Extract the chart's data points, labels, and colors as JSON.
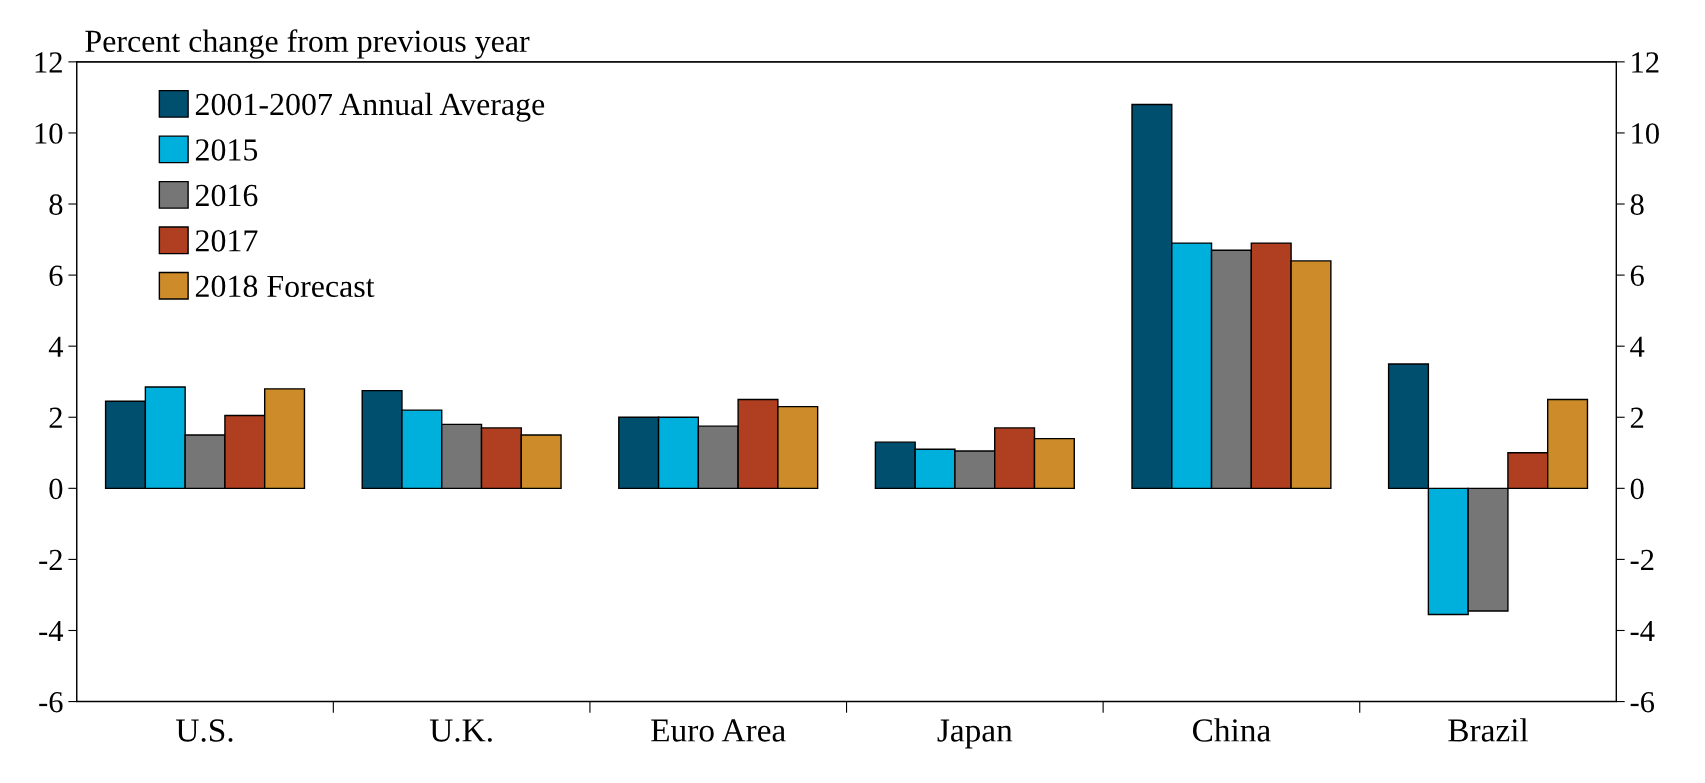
{
  "chart_data": {
    "type": "bar",
    "ylabel": "Percent change from previous year",
    "categories": [
      "U.S.",
      "U.K.",
      "Euro Area",
      "Japan",
      "China",
      "Brazil"
    ],
    "series": [
      {
        "name": "2001-2007 Annual Average",
        "color": "#004f6e",
        "values": [
          2.45,
          2.75,
          2.0,
          1.3,
          10.8,
          3.5
        ]
      },
      {
        "name": "2015",
        "color": "#00b0dc",
        "values": [
          2.85,
          2.2,
          2.0,
          1.1,
          6.9,
          -3.55
        ]
      },
      {
        "name": "2016",
        "color": "#767676",
        "values": [
          1.5,
          1.8,
          1.75,
          1.05,
          6.7,
          -3.45
        ]
      },
      {
        "name": "2017",
        "color": "#b03e20",
        "values": [
          2.05,
          1.7,
          2.5,
          1.7,
          6.9,
          1.0
        ]
      },
      {
        "name": "2018 Forecast",
        "color": "#cd8b2a",
        "values": [
          2.8,
          1.5,
          2.3,
          1.4,
          6.4,
          2.5
        ]
      }
    ],
    "ylim": [
      -6,
      12
    ],
    "yticks": [
      -6,
      -4,
      -2,
      0,
      2,
      4,
      6,
      8,
      10,
      12
    ],
    "y2lim": [
      -6,
      12
    ],
    "y2ticks": [
      -6,
      -4,
      -2,
      0,
      2,
      4,
      6,
      8,
      10,
      12
    ],
    "legend": "top left",
    "grid": false
  }
}
